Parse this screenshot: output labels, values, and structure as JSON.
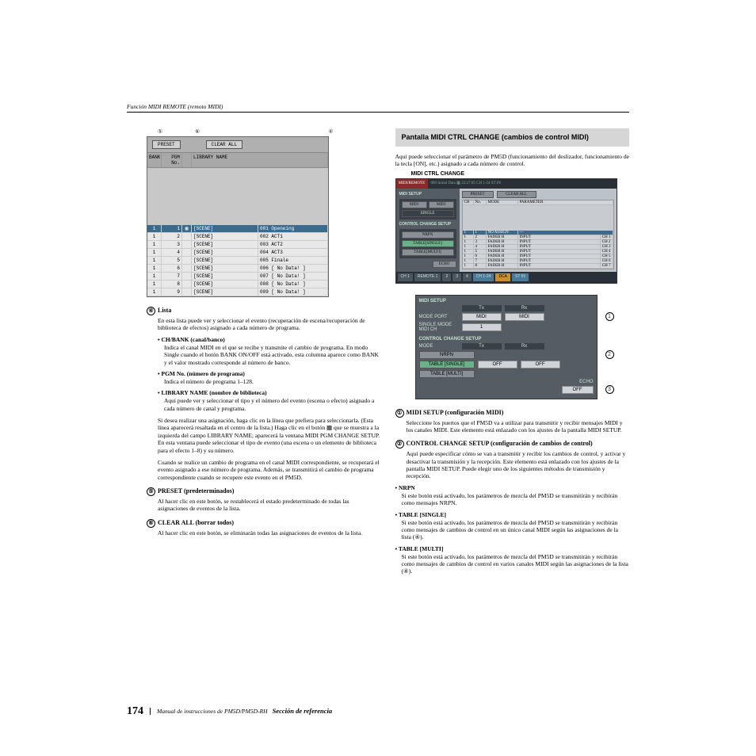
{
  "header": {
    "breadcrumb": "Función MIDI REMOTE (remoto MIDI)"
  },
  "figtable": {
    "callouts_top": [
      "⑤",
      "⑥",
      "④"
    ],
    "preset_btn": "PRESET",
    "clear_btn": "CLEAR ALL",
    "head": {
      "bank": "BANK",
      "pgm": "PGM No.",
      "lib": "LIBRARY NAME"
    },
    "rows": [
      {
        "bank": "1",
        "pgm": "1",
        "btn": "▦",
        "lib1": "[SCENE]",
        "lib2": "001 Openeing",
        "hl": true
      },
      {
        "bank": "1",
        "pgm": "2",
        "btn": "",
        "lib1": "[SCENE]",
        "lib2": "002 ACT1",
        "hl": false
      },
      {
        "bank": "1",
        "pgm": "3",
        "btn": "",
        "lib1": "[SCENE]",
        "lib2": "003 ACT2",
        "hl": false
      },
      {
        "bank": "1",
        "pgm": "4",
        "btn": "",
        "lib1": "[SCENE]",
        "lib2": "004 ACT3",
        "hl": false
      },
      {
        "bank": "1",
        "pgm": "5",
        "btn": "",
        "lib1": "[SCENE]",
        "lib2": "005 Finale",
        "hl": false
      },
      {
        "bank": "1",
        "pgm": "6",
        "btn": "",
        "lib1": "[SCENE]",
        "lib2": "006 [  No Data! ]",
        "hl": false
      },
      {
        "bank": "1",
        "pgm": "7",
        "btn": "",
        "lib1": "[SCENE]",
        "lib2": "007 [  No Data! ]",
        "hl": false
      },
      {
        "bank": "1",
        "pgm": "8",
        "btn": "",
        "lib1": "[SCENE]",
        "lib2": "008 [  No Data! ]",
        "hl": false
      },
      {
        "bank": "1",
        "pgm": "9",
        "btn": "",
        "lib1": "[SCENE]",
        "lib2": "009 [  No Data! ]",
        "hl": false
      }
    ]
  },
  "left": {
    "i4": {
      "num": "④",
      "title": "Lista",
      "body": "En esta lista puede ver y seleccionar el evento (recuperación de escena/recuperación de biblioteca de efectos) asignado a cada número de programa."
    },
    "ch_h": "CH/BANK (canal/banco)",
    "ch_b": "Indica el canal MIDI en el que se recibe y transmite el cambio de programa. En modo Single cuando el botón BANK ON/OFF está activado, esta columna aparece como BANK y el valor mostrado corresponde al número de banco.",
    "pgm_h": "PGM No. (número de programa)",
    "pgm_b": "Indica el número de programa 1–128.",
    "lib_h": "LIBRARY NAME (nombre de biblioteca)",
    "lib_b": "Aquí puede ver y seleccionar el tipo y el número del evento (escena o efecto) asignado a cada número de canal y programa.",
    "p1": "Si desea realizar una asignación, haga clic en la línea que prefiera para seleccionarla. (Esta línea aparecerá resaltada en el centro de la lista.) Haga clic en el botón ▦ que se muestra a la izquierda del campo LIBRARY NAME; aparecerá la ventana MIDI PGM CHANGE SETUP. En esta ventana puede seleccionar el tipo de evento (una escena o un elemento de biblioteca para el efecto 1–8) y su número.",
    "p2": "Cuando se realice un cambio de programa en el canal MIDI correspondiente, se recuperará el evento asignado a ese número de programa. Además, se transmitirá el cambio de programa correspondiente cuando se recupere este evento en el PM5D.",
    "i5": {
      "num": "⑤",
      "title": "PRESET (predeterminados)",
      "body": "Al hacer clic en este botón, se restablecerá el estado predeterminado de todas las asignaciones de eventos de la lista."
    },
    "i6": {
      "num": "⑥",
      "title": "CLEAR ALL (borrar todos)",
      "body": "Al hacer clic en este botón, se eliminarán todas las asignaciones de eventos de la lista."
    }
  },
  "right": {
    "section_title": "Pantalla MIDI CTRL CHANGE (cambios de control MIDI)",
    "intro": "Aquí puede seleccionar el parámetro de PM5D (funcionamiento del deslizador, funcionamiento de la tecla [ON], etc.) asignado a cada número de control.",
    "scr_cap": "MIDI CTRL CHANGE",
    "scr": {
      "badge": "MIDI/REMOTE",
      "top": "000 Initial Data   ▦   22:27:05   CH 1-24   ST IN",
      "tabs": [
        "CH 1",
        "REMOTE 1",
        "2",
        "3",
        "4",
        "CH 1-24",
        "DCA",
        "ST IN"
      ]
    },
    "setup": {
      "midi_title": "MIDI SETUP",
      "tx": "Tx",
      "rx": "Rx",
      "mode_port": "MODE PORT",
      "mode_tx": "MIDI",
      "mode_rx": "MIDI",
      "single": "SINGLE MODE\nMIDI CH",
      "single_v": "1",
      "cc_title": "CONTROL CHANGE SETUP",
      "mode": "MODE",
      "nrpn": "NRPN",
      "tsingle": "TABLE [SINGLE]",
      "tmulti": "TABLE [MULTI]",
      "off": "OFF",
      "echo": "ECHO",
      "echo_v": "OFF"
    },
    "i1": {
      "num": "①",
      "title": "MIDI SETUP (configuración MIDI)",
      "body": "Seleccione los puertos que el PM5D va a utilizar para transmitir y recibir mensajes MIDI y los canales MIDI. Este elemento está enlazado con los ajustes de la pantalla MIDI SETUP."
    },
    "i2": {
      "num": "②",
      "title": "CONTROL CHANGE SETUP (configuración de cambios de control)",
      "body": "Aquí puede especificar cómo se van a transmitir y recibir los cambios de control, y activar y desactivar la transmisión y la recepción. Este elemento está enlazado con los ajustes de la pantalla MIDI SETUP. Puede elegir uno de los siguientes métodos de transmisión y recepción."
    },
    "nrpn_h": "NRPN",
    "nrpn_b": "Si este botón está activado, los parámetros de mezcla del PM5D se transmitirán y recibirán como mensajes NRPN.",
    "ts_h": "TABLE [SINGLE]",
    "ts_b": "Si este botón está activado, los parámetros de mezcla del PM5D se transmitirán y recibirán como mensajes de cambios de control en un único canal MIDI según las asignaciones de la lista (④).",
    "tm_h": "TABLE [MULTI]",
    "tm_b": "Si este botón está activado, los parámetros de mezcla del PM5D se transmitirán y recibirán como mensajes de cambios de control en varios canales MIDI según las asignaciones de la lista (④)."
  },
  "footer": {
    "page": "174",
    "txt": "Manual de instrucciones de PM5D/PM5D-RH",
    "sec": "Sección de referencia"
  }
}
